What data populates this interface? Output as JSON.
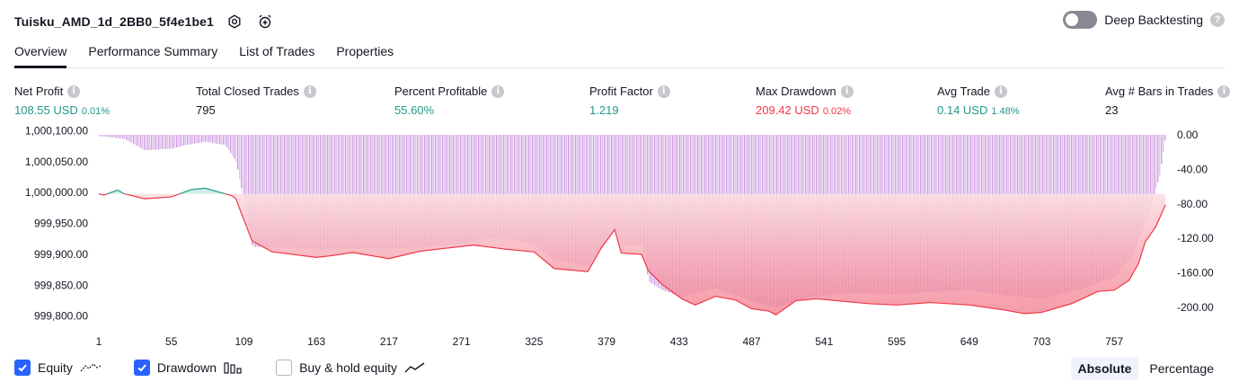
{
  "header": {
    "title": "Tuisku_AMD_1d_2BB0_5f4e1be1",
    "icons": [
      "settings-icon",
      "add-alert-icon"
    ]
  },
  "deep_backtesting": {
    "label": "Deep Backtesting",
    "enabled": false
  },
  "tabs": [
    "Overview",
    "Performance Summary",
    "List of Trades",
    "Properties"
  ],
  "active_tab": "Overview",
  "stats": {
    "net_profit": {
      "label": "Net Profit",
      "value": "108.55 USD",
      "pct": "0.01%"
    },
    "total_closed_trades": {
      "label": "Total Closed Trades",
      "value": "795"
    },
    "percent_profitable": {
      "label": "Percent Profitable",
      "value": "55.60%"
    },
    "profit_factor": {
      "label": "Profit Factor",
      "value": "1.219"
    },
    "max_drawdown": {
      "label": "Max Drawdown",
      "value": "209.42 USD",
      "pct": "0.02%"
    },
    "avg_trade": {
      "label": "Avg Trade",
      "value": "0.14 USD",
      "pct": "1.48%"
    },
    "avg_bars": {
      "label": "Avg # Bars in Trades",
      "value": "23"
    }
  },
  "colors": {
    "green": "#22998a",
    "red": "#f23645",
    "drawdown": "#ce93d8",
    "equity_fill_red": "#f7a9b4",
    "accent": "#2962ff"
  },
  "chart_data": {
    "type": "area",
    "x_ticks": [
      "1",
      "55",
      "109",
      "163",
      "217",
      "271",
      "325",
      "379",
      "433",
      "487",
      "541",
      "595",
      "649",
      "703",
      "757"
    ],
    "left_axis": {
      "ticks": [
        "1,000,100.00",
        "1,000,050.00",
        "1,000,000.00",
        "999,950.00",
        "999,900.00",
        "999,850.00",
        "999,800.00"
      ],
      "range": [
        999785,
        1000108
      ]
    },
    "right_axis": {
      "ticks": [
        "0.00",
        "-40.00",
        "-80.00",
        "-120.00",
        "-160.00",
        "-200.00"
      ],
      "range": [
        -209.42,
        0
      ]
    },
    "series": [
      {
        "name": "Equity",
        "x": [
          1,
          5,
          15,
          20,
          35,
          55,
          70,
          80,
          100,
          103,
          115,
          130,
          145,
          163,
          175,
          190,
          217,
          240,
          260,
          280,
          305,
          325,
          340,
          365,
          375,
          385,
          390,
          405,
          410,
          420,
          435,
          445,
          460,
          475,
          487,
          500,
          505,
          520,
          535,
          555,
          575,
          595,
          620,
          649,
          675,
          690,
          703,
          725,
          745,
          757,
          768,
          775,
          780,
          788,
          795
        ],
        "values": [
          999998,
          999996,
          1000004,
          999998,
          999990,
          999993,
          1000005,
          1000007,
          999995,
          999990,
          999922,
          999904,
          999900,
          999895,
          999898,
          999903,
          999893,
          999905,
          999910,
          999915,
          999908,
          999904,
          999877,
          999872,
          999910,
          999940,
          999902,
          999900,
          999874,
          999852,
          999828,
          999818,
          999832,
          999826,
          999812,
          999808,
          999802,
          999825,
          999828,
          999824,
          999820,
          999818,
          999822,
          999818,
          999810,
          999804,
          999806,
          999820,
          999840,
          999842,
          999858,
          999885,
          999920,
          999945,
          999980
        ]
      },
      {
        "name": "Drawdown",
        "x": [
          1,
          5,
          20,
          35,
          55,
          65,
          80,
          95,
          103,
          115,
          130,
          163,
          190,
          217,
          245,
          270,
          290,
          310,
          325,
          340,
          365,
          375,
          385,
          390,
          405,
          410,
          420,
          435,
          460,
          487,
          505,
          530,
          560,
          595,
          620,
          649,
          675,
          703,
          730,
          757,
          770,
          780,
          790,
          795
        ],
        "values": [
          -2,
          -2,
          -5,
          -18,
          -16,
          -12,
          -8,
          -12,
          -32,
          -130,
          -130,
          -132,
          -132,
          -132,
          -130,
          -126,
          -120,
          -122,
          -128,
          -145,
          -152,
          -130,
          -110,
          -128,
          -128,
          -170,
          -180,
          -188,
          -178,
          -193,
          -200,
          -188,
          -183,
          -185,
          -182,
          -180,
          -186,
          -190,
          -180,
          -165,
          -140,
          -100,
          -50,
          0
        ]
      }
    ],
    "legend": [
      {
        "name": "Equity",
        "checked": true
      },
      {
        "name": "Drawdown",
        "checked": true
      },
      {
        "name": "Buy & hold equity",
        "checked": false
      }
    ]
  },
  "view_modes": {
    "absolute": "Absolute",
    "percentage": "Percentage",
    "selected": "Absolute"
  }
}
